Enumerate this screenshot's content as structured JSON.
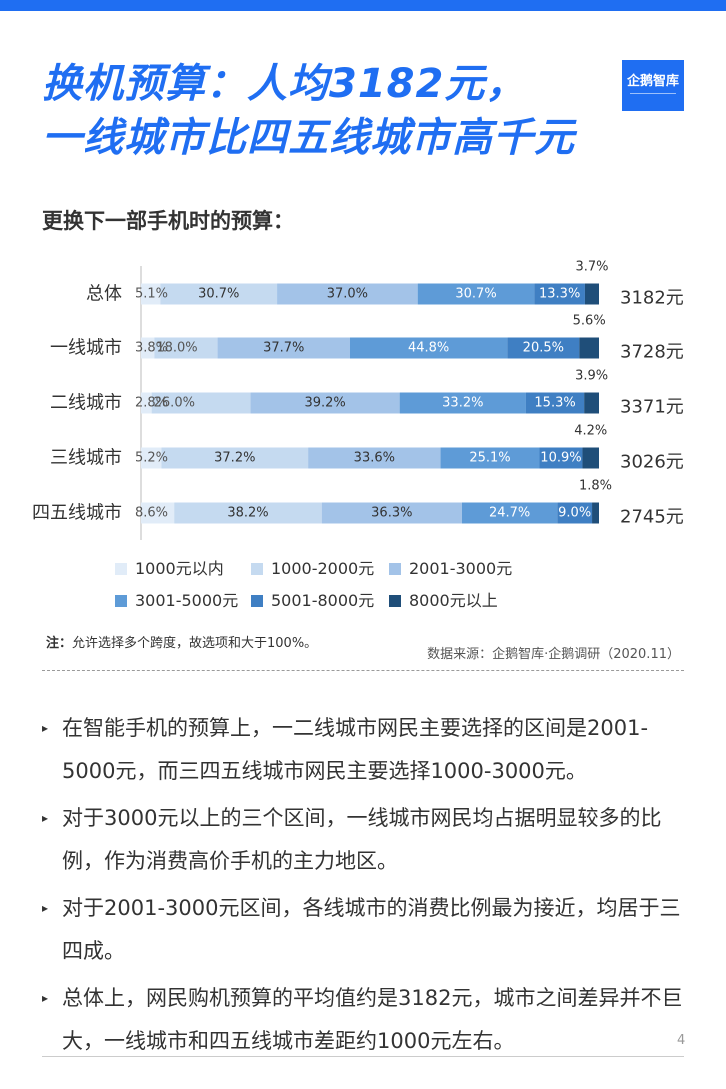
{
  "header": {
    "title_line1": "换机预算：人均3182元，",
    "title_line2": "一线城市比四五线城市高千元",
    "logo_text": "企鹅智库",
    "accent_color": "#1f6ef2"
  },
  "subtitle": "更换下一部手机时的预算：",
  "chart_data": {
    "type": "bar",
    "orientation": "horizontal",
    "stacked": true,
    "percent_stacked": true,
    "categories": [
      "总体",
      "一线城市",
      "二线城市",
      "三线城市",
      "四五线城市"
    ],
    "series": [
      {
        "name": "1000元以内",
        "color": "#e1ecf8",
        "values": [
          5.1,
          3.8,
          2.8,
          5.2,
          8.6
        ],
        "labels": [
          "5.1%",
          "3.8%",
          "2.8%",
          "5.2%",
          "8.6%"
        ]
      },
      {
        "name": "1000-2000元",
        "color": "#c5daf0",
        "values": [
          30.7,
          18.0,
          26.0,
          37.2,
          38.2
        ],
        "labels": [
          "30.7%",
          "18.0%",
          "26.0%",
          "37.2%",
          "38.2%"
        ]
      },
      {
        "name": "2001-3000元",
        "color": "#a3c3e8",
        "values": [
          37.0,
          37.7,
          39.2,
          33.6,
          36.3
        ],
        "labels": [
          "37.0%",
          "37.7%",
          "39.2%",
          "33.6%",
          "36.3%"
        ]
      },
      {
        "name": "3001-5000元",
        "color": "#5e9bd7",
        "values": [
          30.7,
          44.8,
          33.2,
          25.1,
          24.7
        ],
        "labels": [
          "30.7%",
          "44.8%",
          "33.2%",
          "25.1%",
          "24.7%"
        ]
      },
      {
        "name": "5001-8000元",
        "color": "#3f7fc3",
        "values": [
          13.3,
          20.5,
          15.3,
          10.9,
          9.0
        ],
        "labels": [
          "13.3%",
          "20.5%",
          "15.3%",
          "10.9%",
          "9.0%"
        ]
      },
      {
        "name": "8000元以上",
        "color": "#1f4e79",
        "values": [
          3.7,
          5.6,
          3.9,
          4.2,
          1.8
        ],
        "labels": [
          "3.7%",
          "5.6%",
          "3.9%",
          "4.2%",
          "1.8%"
        ]
      }
    ],
    "averages": [
      "3182元",
      "3728元",
      "3371元",
      "3026元",
      "2745元"
    ],
    "legend_position": "bottom",
    "grid": false
  },
  "note": {
    "prefix": "注：",
    "text": "允许选择多个跨度，故选项和大于100%。"
  },
  "source": "数据来源：企鹅智库·企鹅调研（2020.11）",
  "bullets": [
    "在智能手机的预算上，一二线城市网民主要选择的区间是2001-5000元，而三四五线城市网民主要选择1000-3000元。",
    "对于3000元以上的三个区间，一线城市网民均占据明显较多的比例，作为消费高价手机的主力地区。",
    "对于2001-3000元区间，各线城市的消费比例最为接近，均居于三四成。",
    "总体上，网民购机预算的平均值约是3182元，城市之间差异并不巨大，一线城市和四五线城市差距约1000元左右。"
  ],
  "page_number": "4"
}
